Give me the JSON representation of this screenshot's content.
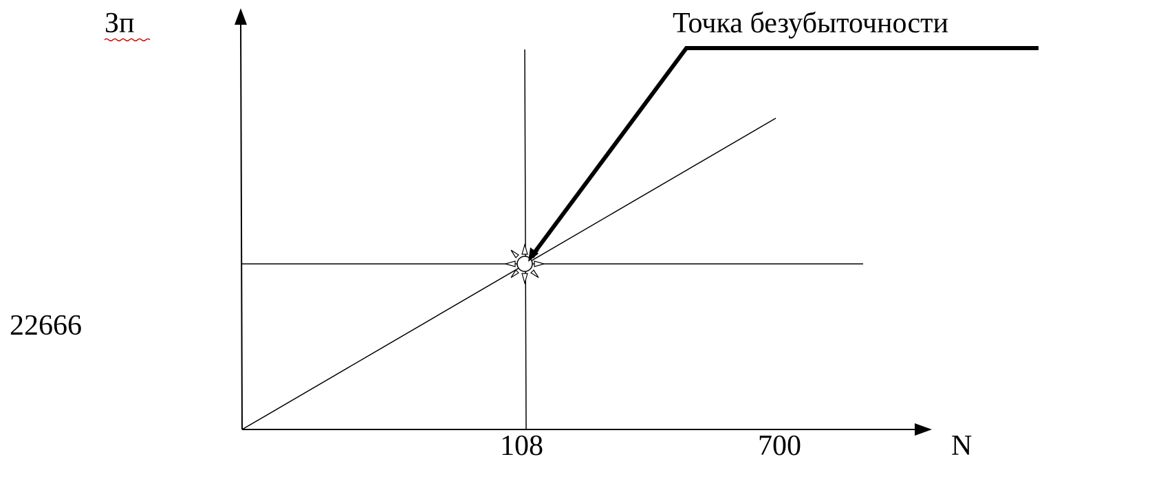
{
  "diagram": {
    "y_axis_label": "Зп",
    "x_axis_label": "N",
    "y_value_label": "22666",
    "x_tick_breakeven": "108",
    "x_tick_max": "700",
    "annotation": "Точка безубыточности"
  },
  "colors": {
    "line": "#000000",
    "squiggle": "#cc0000",
    "background": "#ffffff"
  }
}
